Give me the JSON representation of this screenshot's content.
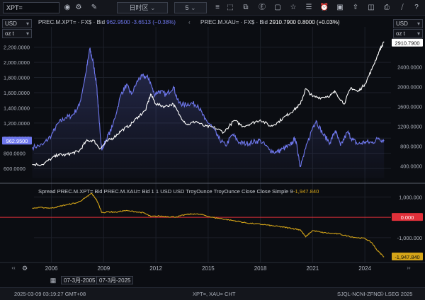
{
  "toolbar": {
    "search_value": "XPT=",
    "interval_label": "日时区",
    "bars_value": "5"
  },
  "left_unit": {
    "currency": "USD",
    "unit": "oz t"
  },
  "right_unit": {
    "currency": "USD",
    "unit": "oz t"
  },
  "legend": {
    "xpt_name": "PREC.M.XPT= · FX$ · Bid",
    "xpt_value": "962.9500",
    "xpt_change": "-3.6513 (−0.38%)",
    "xau_name": "PREC.M.XAU= · FX$ · Bid",
    "xau_value": "2910.7900",
    "xau_change": "0.8000 (+0.03%)"
  },
  "colors": {
    "xpt": "#6f78ee",
    "xau": "#ffffff",
    "spread": "#d4a418",
    "zero_line": "#e0303a",
    "background": "#0b0d12"
  },
  "chart_data": [
    {
      "type": "line",
      "x_ticks": [
        "2006",
        "2009",
        "2012",
        "2015",
        "2018",
        "2021",
        "2024"
      ],
      "left_axis": {
        "ticks": [
          "600.0000",
          "800.0000",
          "1,000.0000",
          "1,200.0000",
          "1,400.0000",
          "1,600.0000",
          "1,800.0000",
          "2,000.0000",
          "2,200.0000"
        ],
        "ylim": [
          470,
          2300
        ]
      },
      "right_axis": {
        "ticks": [
          "400.0000",
          "800.0000",
          "1200.0000",
          "1600.0000",
          "2000.0000",
          "2400.0000"
        ],
        "ylim": [
          150,
          2950
        ]
      },
      "series": [
        {
          "name": "PREC.M.XPT=",
          "axis": "left",
          "last_label": "962.9500",
          "x": [
            2004.9,
            2005.5,
            2006,
            2006.4,
            2006.8,
            2007.2,
            2007.6,
            2008,
            2008.2,
            2008.4,
            2008.6,
            2008.75,
            2008.9,
            2009.1,
            2009.5,
            2010,
            2010.3,
            2010.6,
            2011,
            2011.3,
            2011.6,
            2011.9,
            2012.2,
            2012.6,
            2013,
            2013.3,
            2013.6,
            2014,
            2014.4,
            2014.8,
            2015.2,
            2015.6,
            2016,
            2016.4,
            2016.8,
            2017.2,
            2017.6,
            2018,
            2018.5,
            2018.9,
            2019.3,
            2019.7,
            2020,
            2020.2,
            2020.3,
            2020.6,
            2021,
            2021.2,
            2021.6,
            2022,
            2022.3,
            2022.6,
            2023,
            2023.3,
            2023.6,
            2024,
            2024.4,
            2024.8,
            2025.1
          ],
          "values": [
            880,
            910,
            1040,
            1200,
            1270,
            1300,
            1430,
            1880,
            2180,
            2000,
            1700,
            1200,
            840,
            960,
            1150,
            1580,
            1700,
            1580,
            1780,
            1820,
            1790,
            1580,
            1620,
            1570,
            1680,
            1470,
            1440,
            1460,
            1440,
            1250,
            1160,
            1000,
            900,
            1050,
            940,
            930,
            950,
            970,
            850,
            810,
            860,
            900,
            1000,
            760,
            620,
            860,
            1140,
            1230,
            1050,
            940,
            1100,
            900,
            1080,
            980,
            920,
            950,
            940,
            1000,
            963
          ]
        },
        {
          "name": "PREC.M.XAU=",
          "axis": "right",
          "last_label": "2910.7900",
          "x": [
            2004.9,
            2005.5,
            2006,
            2006.4,
            2006.8,
            2007.2,
            2007.6,
            2008,
            2008.4,
            2008.8,
            2009.2,
            2009.6,
            2010,
            2010.5,
            2011,
            2011.4,
            2011.7,
            2012,
            2012.5,
            2013,
            2013.4,
            2013.8,
            2014.3,
            2014.8,
            2015.3,
            2015.9,
            2016.5,
            2017,
            2017.5,
            2018,
            2018.6,
            2019,
            2019.5,
            2019.9,
            2020.3,
            2020.6,
            2021,
            2021.5,
            2022,
            2022.3,
            2022.8,
            2023.2,
            2023.6,
            2024,
            2024.4,
            2024.8,
            2025.1
          ],
          "values": [
            430,
            430,
            550,
            630,
            620,
            660,
            700,
            900,
            920,
            750,
            900,
            980,
            1110,
            1220,
            1400,
            1520,
            1850,
            1650,
            1600,
            1650,
            1400,
            1230,
            1300,
            1200,
            1180,
            1080,
            1320,
            1200,
            1260,
            1330,
            1200,
            1280,
            1420,
            1520,
            1650,
            1960,
            1800,
            1780,
            1820,
            1900,
            1650,
            1980,
            1900,
            2050,
            2350,
            2700,
            2910
          ]
        }
      ]
    },
    {
      "type": "line",
      "title": "Spread PREC.M.XPT= Bid PREC.M.XAU= Bid 1 1 USD USD TroyOunce TroyOunce Close Close Simple 9",
      "title_value": "-1,947.840",
      "y_ticks": [
        "1,000.000",
        "0.000",
        "-1,000.000"
      ],
      "ylim": [
        -2120,
        1500
      ],
      "zero_label": "0.000",
      "last_label": "-1,947.840",
      "series": [
        {
          "name": "Spread",
          "x": [
            2004.9,
            2005.5,
            2006,
            2006.5,
            2007,
            2007.5,
            2008,
            2008.3,
            2008.6,
            2008.9,
            2009.3,
            2009.7,
            2010.2,
            2010.8,
            2011.3,
            2011.7,
            2012.2,
            2012.7,
            2013.2,
            2013.7,
            2014.2,
            2014.7,
            2015.2,
            2015.7,
            2016.2,
            2016.7,
            2017.2,
            2017.7,
            2018.2,
            2018.7,
            2019.2,
            2019.6,
            2020,
            2020.3,
            2020.6,
            2021,
            2021.5,
            2022,
            2022.5,
            2023,
            2023.5,
            2024,
            2024.4,
            2024.7,
            2025.1
          ],
          "values": [
            450,
            480,
            450,
            550,
            640,
            720,
            980,
            1180,
            850,
            230,
            270,
            250,
            330,
            280,
            220,
            40,
            60,
            30,
            20,
            130,
            170,
            120,
            0,
            -60,
            -130,
            -200,
            -280,
            -320,
            -360,
            -420,
            -470,
            -520,
            -570,
            -620,
            -960,
            -650,
            -740,
            -790,
            -820,
            -920,
            -1000,
            -1040,
            -1250,
            -1620,
            -1948
          ]
        }
      ]
    }
  ],
  "date_range": {
    "from": "07-3月-2005",
    "to": "07-3月-2025"
  },
  "status": {
    "timestamp": "2025-03-09 03:19:27 GMT+08",
    "instruments": "XPT=, XAU= CHT",
    "source": "SJQL-NCNI-ZFNC",
    "copyright": "© LSEG 2025"
  }
}
